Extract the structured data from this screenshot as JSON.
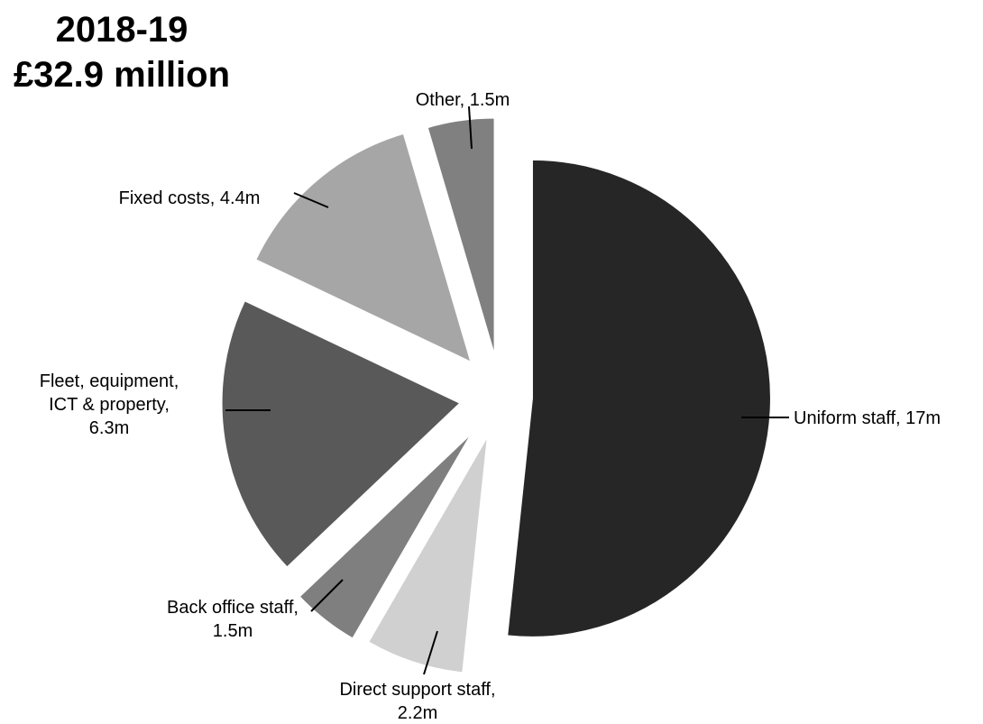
{
  "chart_data": {
    "type": "pie",
    "title": "2018-19",
    "subtitle": "£32.9 million",
    "slices": [
      {
        "label_lines": [
          "Uniform staff, 17m"
        ],
        "value": 17,
        "color": "#262626"
      },
      {
        "label_lines": [
          "Direct support staff,",
          "2.2m"
        ],
        "value": 2.2,
        "color": "#d0d0d0"
      },
      {
        "label_lines": [
          "Back office staff,",
          "1.5m"
        ],
        "value": 1.5,
        "color": "#7f7f7f"
      },
      {
        "label_lines": [
          "Fleet, equipment,",
          "ICT & property,",
          "6.3m"
        ],
        "value": 6.3,
        "color": "#595959"
      },
      {
        "label_lines": [
          "Fixed costs, 4.4m"
        ],
        "value": 4.4,
        "color": "#a6a6a6"
      },
      {
        "label_lines": [
          "Other, 1.5m"
        ],
        "value": 1.5,
        "color": "#808080"
      }
    ]
  }
}
